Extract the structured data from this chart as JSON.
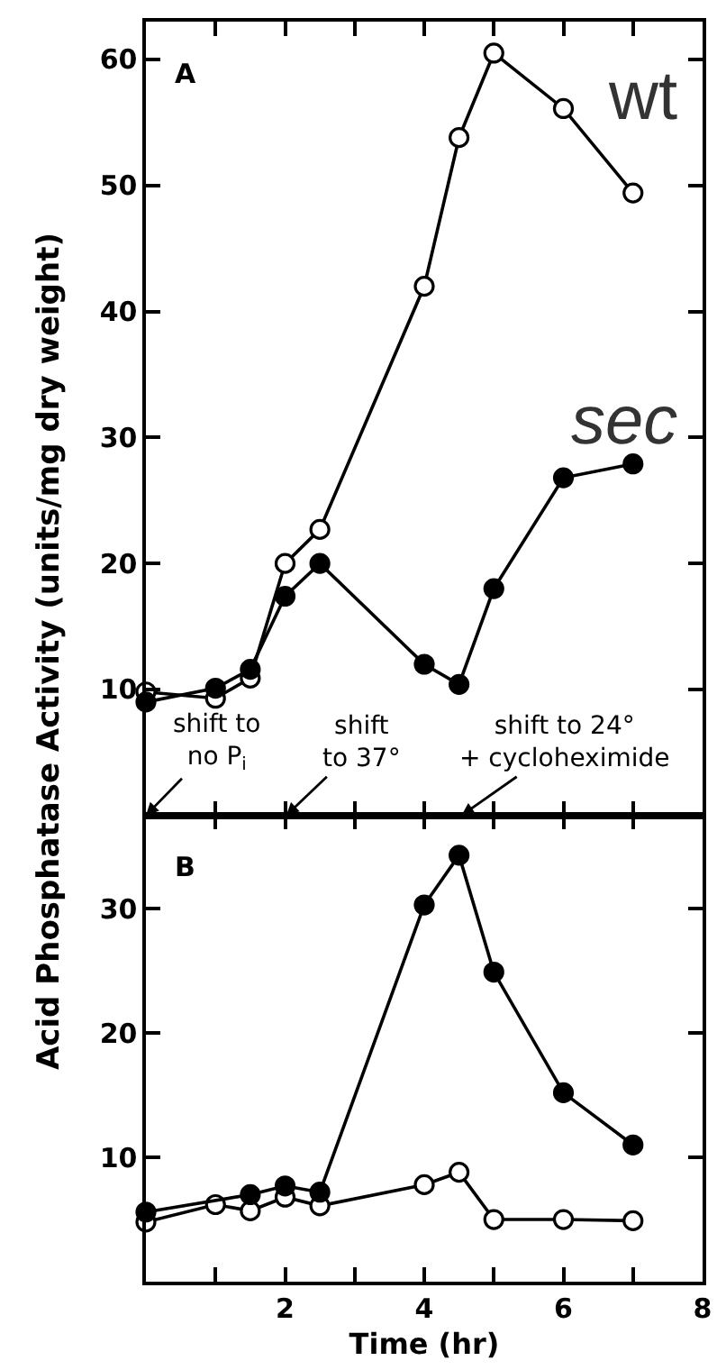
{
  "chart_data": [
    {
      "type": "line",
      "ylabel": "Acid Phosphatase Activity (units/mg dry weight)",
      "annotations": [
        "A",
        "shift to\nno P$_{i}$",
        "shift\nto 37°",
        "shift to 24°\n+ cycloheximide"
      ],
      "series": [
        {
          "name": "wt",
          "color": "#000000",
          "x": [
            0,
            1,
            1.5,
            2,
            2.5,
            4,
            4.5,
            5,
            6,
            7
          ],
          "values": [
            9.8,
            9.3,
            10.9,
            20,
            22.7,
            42,
            53.8,
            60.5,
            56.1,
            49.4
          ]
        },
        {
          "name": "sec",
          "color": "#000000",
          "x": [
            0,
            1,
            1.5,
            2,
            2.5,
            4,
            4.5,
            5,
            6,
            7
          ],
          "values": [
            9,
            10.1,
            11.6,
            17.4,
            20,
            12,
            10.4,
            18,
            26.8,
            27.9
          ]
        }
      ],
      "xlim": [
        0,
        8
      ],
      "xticks": [
        1,
        2,
        3,
        4,
        5,
        6,
        7
      ],
      "ylim": [
        0,
        63
      ],
      "yticks": [
        10,
        20,
        30,
        40,
        50,
        60
      ],
      "tick_labels": "y",
      "legend": "top right",
      "marker": "circle",
      "line_style": "solid"
    },
    {
      "type": "line",
      "xlabel": "Time (hr)",
      "annotations": [
        "B"
      ],
      "series": [
        {
          "color": "#000000",
          "x": [
            0,
            1,
            1.5,
            2,
            2.5,
            4,
            4.5,
            5,
            6,
            7
          ],
          "values": [
            4.8,
            6.2,
            5.7,
            6.8,
            6.1,
            7.8,
            8.8,
            5,
            5,
            4.9
          ]
        },
        {
          "color": "#000000",
          "x": [
            0,
            1.5,
            2,
            2.5,
            4,
            4.5,
            5,
            6,
            7
          ],
          "values": [
            5.6,
            7,
            7.7,
            7.2,
            30.3,
            34.3,
            24.9,
            15.2,
            11
          ]
        }
      ],
      "xlim": [
        0,
        8
      ],
      "xticks": [
        {
          "value": 1,
          "label": null
        },
        2,
        {
          "value": 3,
          "label": null
        },
        4,
        {
          "value": 5,
          "label": null
        },
        6,
        {
          "value": 7,
          "label": null
        },
        8
      ],
      "ylim": [
        0,
        37.5
      ],
      "yticks": [
        10,
        20,
        30
      ],
      "marker": "circle",
      "line_style": "solid"
    }
  ]
}
